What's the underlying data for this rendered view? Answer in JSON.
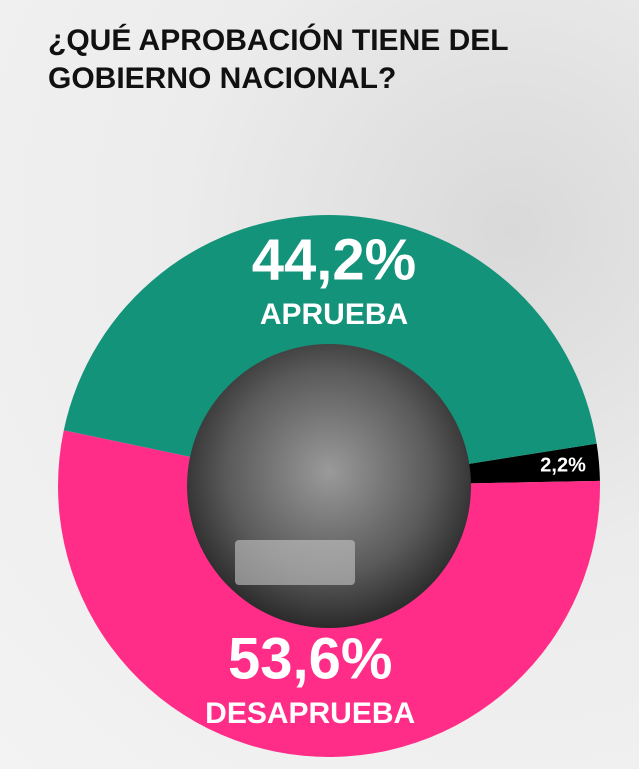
{
  "chart_data": {
    "type": "donut",
    "title": "¿QUÉ APROBACIÓN TIENE DEL GOBIERNO NACIONAL?",
    "categories": [
      null,
      "DESAPRUEBA",
      "APRUEBA"
    ],
    "values": [
      2.2,
      53.6,
      44.2
    ],
    "value_labels": [
      "2,2%",
      "53,6%",
      "44,2%"
    ],
    "colors": [
      "#000000",
      "#ff2d87",
      "#139379"
    ]
  }
}
